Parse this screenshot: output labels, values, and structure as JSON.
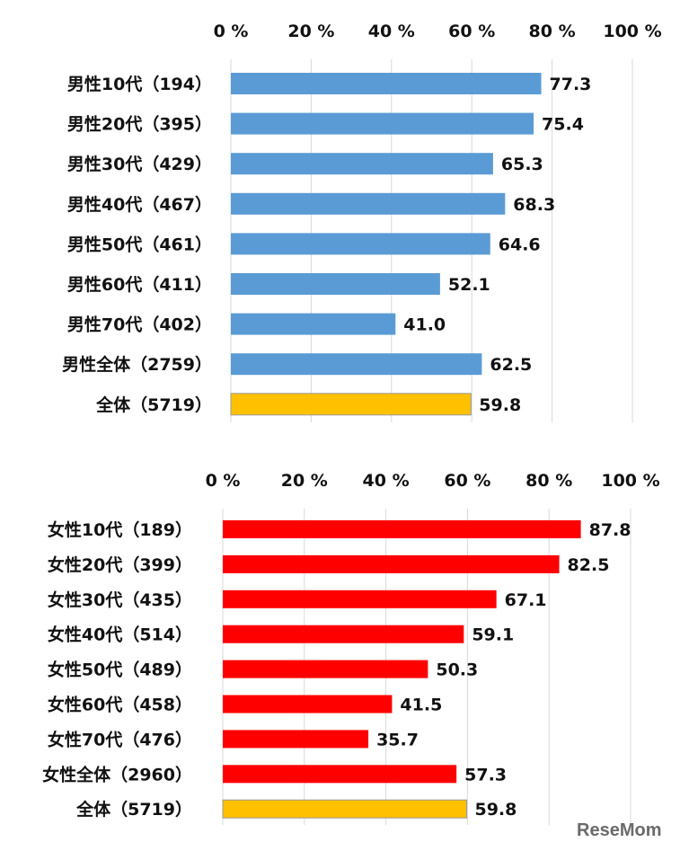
{
  "chart_data": [
    {
      "type": "bar",
      "orientation": "horizontal",
      "xlim": [
        0,
        100
      ],
      "ticks": [
        "0 %",
        "20 %",
        "40 %",
        "60 %",
        "80 %",
        "100 %"
      ],
      "axis_position": "top",
      "grid": true,
      "categories": [
        "男性10代（194）",
        "男性20代（395）",
        "男性30代（429）",
        "男性40代（467）",
        "男性50代（461）",
        "男性60代（411）",
        "男性70代（402）",
        "男性全体（2759）",
        "全体（5719）"
      ],
      "values": [
        77.3,
        75.4,
        65.3,
        68.3,
        64.6,
        52.1,
        41.0,
        62.5,
        59.8
      ],
      "value_labels": [
        "77.3",
        "75.4",
        "65.3",
        "68.3",
        "64.6",
        "52.1",
        "41.0",
        "62.5",
        "59.8"
      ],
      "colors": [
        "#5b9bd5",
        "#5b9bd5",
        "#5b9bd5",
        "#5b9bd5",
        "#5b9bd5",
        "#5b9bd5",
        "#5b9bd5",
        "#5b9bd5",
        "#ffc000"
      ]
    },
    {
      "type": "bar",
      "orientation": "horizontal",
      "xlim": [
        0,
        100
      ],
      "ticks": [
        "0 %",
        "20 %",
        "40 %",
        "60 %",
        "80 %",
        "100 %"
      ],
      "axis_position": "top",
      "grid": true,
      "categories": [
        "女性10代（189）",
        "女性20代（399）",
        "女性30代（435）",
        "女性40代（514）",
        "女性50代（489）",
        "女性60代（458）",
        "女性70代（476）",
        "女性全体（2960）",
        "全体（5719）"
      ],
      "values": [
        87.8,
        82.5,
        67.1,
        59.1,
        50.3,
        41.5,
        35.7,
        57.3,
        59.8
      ],
      "value_labels": [
        "87.8",
        "82.5",
        "67.1",
        "59.1",
        "50.3",
        "41.5",
        "35.7",
        "57.3",
        "59.8"
      ],
      "colors": [
        "#ff0000",
        "#ff0000",
        "#ff0000",
        "#ff0000",
        "#ff0000",
        "#ff0000",
        "#ff0000",
        "#ff0000",
        "#ffc000"
      ]
    }
  ],
  "logo": {
    "icon": "resemom-logo",
    "text": "ReseMom",
    "color": "#666666"
  }
}
